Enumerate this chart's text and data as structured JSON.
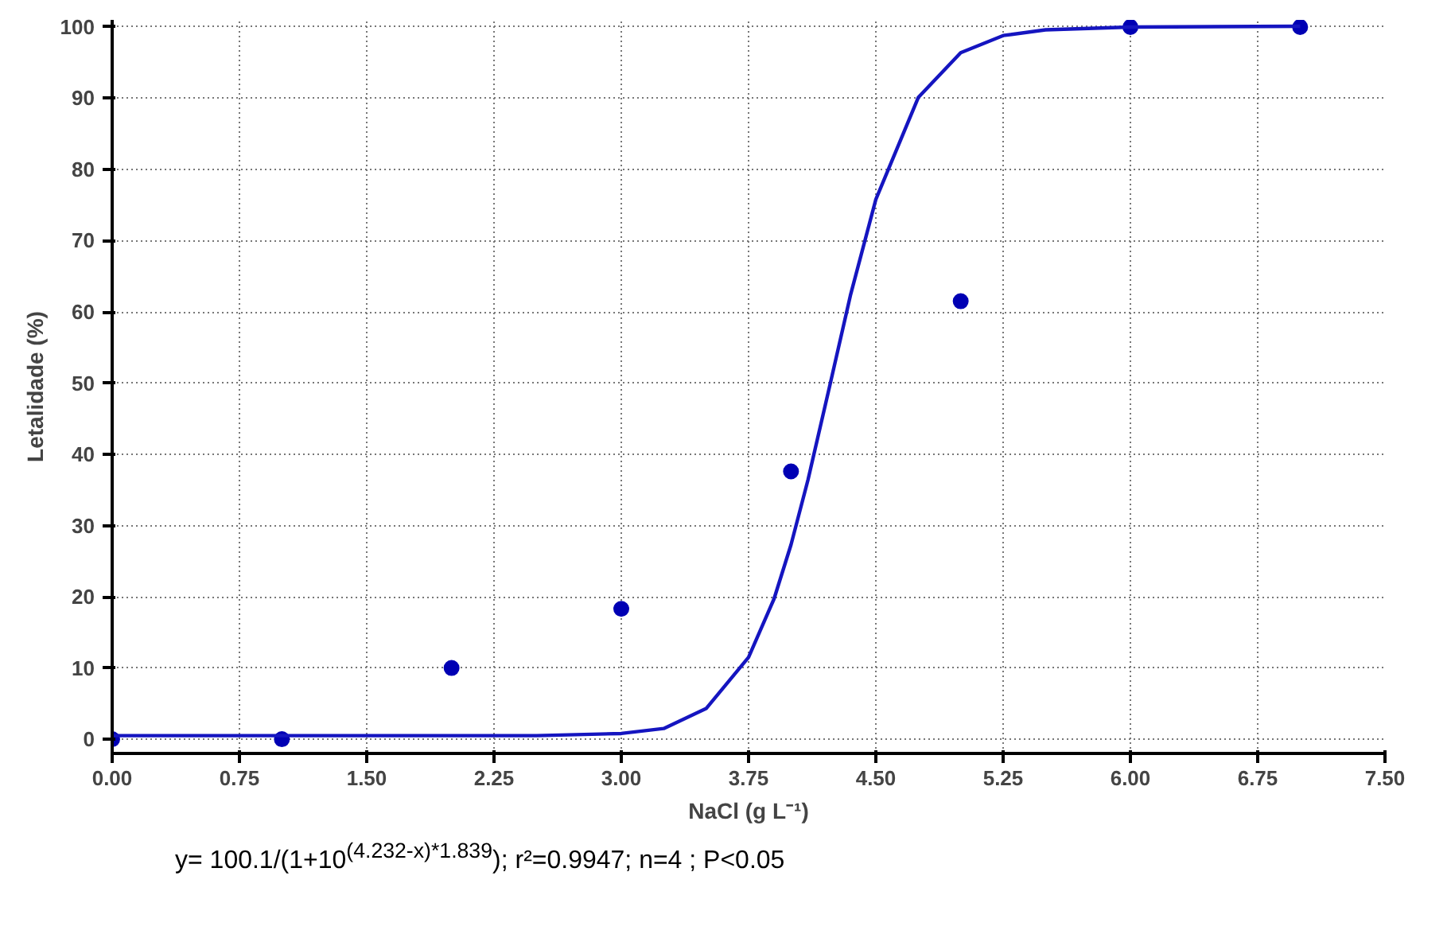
{
  "chart_data": {
    "type": "scatter",
    "xlabel": "NaCl (g L⁻¹)",
    "ylabel": "Letalidade (%)",
    "series": [
      {
        "marker": "circle",
        "color": "#0000b4",
        "x": [
          0,
          1,
          2,
          3,
          4,
          5,
          6,
          7
        ],
        "values": [
          0,
          0,
          10,
          18.3,
          37.6,
          61.5,
          100,
          100
        ]
      },
      {
        "type": "line",
        "marker": "none",
        "color": "#1515c0",
        "x": [
          0,
          1,
          2,
          2.5,
          3,
          3.25,
          3.5,
          3.75,
          3.9,
          4.0,
          4.1,
          4.232,
          4.35,
          4.5,
          4.75,
          5,
          5.25,
          5.5,
          6,
          7
        ],
        "values": [
          0.5,
          0.5,
          0.5,
          0.5,
          0.8,
          1.5,
          4.3,
          11.5,
          19.7,
          27.3,
          36.4,
          50.0,
          62.3,
          75.8,
          90.1,
          96.4,
          98.8,
          99.6,
          100,
          100.1
        ]
      }
    ],
    "line_style": "solid",
    "grid": true,
    "xlim": [
      0,
      7.5
    ],
    "ylim": [
      -2,
      101
    ],
    "xticks": [
      {
        "value": 0,
        "label": "0.00"
      },
      {
        "value": 0.75,
        "label": "0.75"
      },
      {
        "value": 1.5,
        "label": "1.50"
      },
      {
        "value": 2.25,
        "label": "2.25"
      },
      {
        "value": 3,
        "label": "3.00"
      },
      {
        "value": 3.75,
        "label": "3.75"
      },
      {
        "value": 4.5,
        "label": "4.50"
      },
      {
        "value": 5.25,
        "label": "5.25"
      },
      {
        "value": 6,
        "label": "6.00"
      },
      {
        "value": 6.75,
        "label": "6.75"
      },
      {
        "value": 7.5,
        "label": "7.50"
      }
    ],
    "yticks": [
      0,
      10,
      20,
      30,
      40,
      50,
      60,
      70,
      80,
      90,
      100
    ],
    "annotations": [
      "y= 100.1/(1+10$^{(4.232-x)*1.839}$); r²=0.9947; n=4 ; P<0.05"
    ]
  }
}
